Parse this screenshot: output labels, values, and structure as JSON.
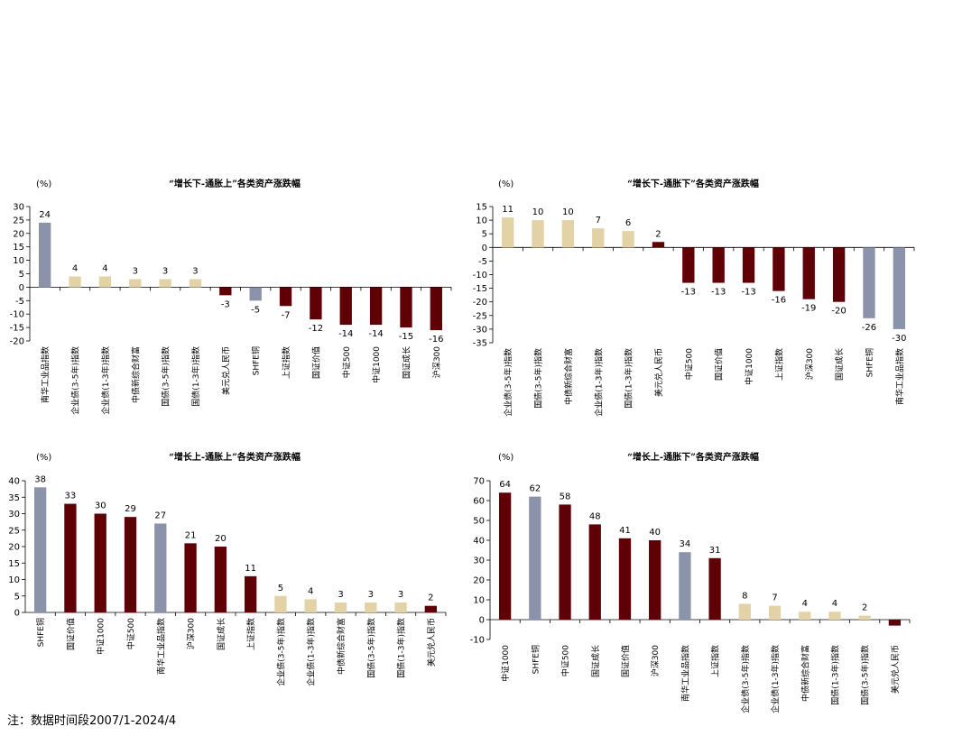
{
  "footnote": "注：数据时间段2007/1-2024/4",
  "colors": {
    "commodity": "#8b93ab",
    "equity": "#5f0006",
    "bond": "#e3d2a5",
    "axis": "#000000"
  },
  "chart_data": [
    {
      "type": "bar",
      "title": "“增长下-通胀上”各类资产涨跌幅",
      "ylabel": "(%)",
      "ylim": [
        -20,
        30
      ],
      "yticks": [
        30,
        25,
        20,
        15,
        10,
        5,
        0,
        -5,
        -10,
        -15,
        -20
      ],
      "categories": [
        "南华工业品指数",
        "企业债(3-5年)指数",
        "企业债(1-3年)指数",
        "中债新综合财富",
        "国债(3-5年)指数",
        "国债(1-3年)指数",
        "美元兑人民币",
        "SHFE铜",
        "上证指数",
        "国证价值",
        "中证500",
        "中证1000",
        "国证成长",
        "沪深300"
      ],
      "values": [
        24,
        4,
        4,
        3,
        3,
        3,
        -3,
        -5,
        -7,
        -12,
        -14,
        -14,
        -15,
        -16
      ],
      "colors": [
        "commodity",
        "bond",
        "bond",
        "bond",
        "bond",
        "bond",
        "equity",
        "commodity",
        "equity",
        "equity",
        "equity",
        "equity",
        "equity",
        "equity"
      ]
    },
    {
      "type": "bar",
      "title": "“增长下-通胀下”各类资产涨跌幅",
      "ylabel": "(%)",
      "ylim": [
        -35,
        15
      ],
      "yticks": [
        15,
        10,
        5,
        0,
        -5,
        -10,
        -15,
        -20,
        -25,
        -30,
        -35
      ],
      "categories": [
        "企业债(3-5年)指数",
        "国债(3-5年)指数",
        "中债新综合财富",
        "企业债(1-3年)指数",
        "国债(1-3年)指数",
        "美元兑人民币",
        "中证500",
        "国证价值",
        "中证1000",
        "上证指数",
        "沪深300",
        "国证成长",
        "SHFE铜",
        "南华工业品指数"
      ],
      "values": [
        11,
        10,
        10,
        7,
        6,
        2,
        -13,
        -13,
        -13,
        -16,
        -19,
        -20,
        -26,
        -30
      ],
      "colors": [
        "bond",
        "bond",
        "bond",
        "bond",
        "bond",
        "equity",
        "equity",
        "equity",
        "equity",
        "equity",
        "equity",
        "equity",
        "commodity",
        "commodity"
      ]
    },
    {
      "type": "bar",
      "title": "“增长上-通胀上”各类资产涨跌幅",
      "ylabel": "(%)",
      "ylim": [
        0,
        40
      ],
      "yticks": [
        40,
        35,
        30,
        25,
        20,
        15,
        10,
        5,
        0
      ],
      "categories": [
        "SHFE铜",
        "国证价值",
        "中证1000",
        "中证500",
        "南华工业品指数",
        "沪深300",
        "国证成长",
        "上证指数",
        "企业债(3-5年)指数",
        "企业债(1-3年)指数",
        "中债新综合财富",
        "国债(3-5年)指数",
        "国债(1-3年)指数",
        "美元兑人民币"
      ],
      "values": [
        38,
        33,
        30,
        29,
        27,
        21,
        20,
        11,
        5,
        4,
        3,
        3,
        3,
        2
      ],
      "colors": [
        "commodity",
        "equity",
        "equity",
        "equity",
        "commodity",
        "equity",
        "equity",
        "equity",
        "bond",
        "bond",
        "bond",
        "bond",
        "bond",
        "equity"
      ]
    },
    {
      "type": "bar",
      "title": "“增长上-通胀下”各类资产涨跌幅",
      "ylabel": "(%)",
      "ylim": [
        -10,
        70
      ],
      "yticks": [
        70,
        60,
        50,
        40,
        30,
        20,
        10,
        0,
        -10
      ],
      "categories": [
        "中证1000",
        "SHFE铜",
        "中证500",
        "国证成长",
        "国证价值",
        "沪深300",
        "南华工业品指数",
        "上证指数",
        "企业债(3-5年)指数",
        "企业债(1-3年)指数",
        "中债新综合财富",
        "国债(1-3年)指数",
        "国债(3-5年)指数",
        "美元兑人民币"
      ],
      "values": [
        64,
        62,
        58,
        48,
        41,
        40,
        34,
        31,
        8,
        7,
        4,
        4,
        2,
        -3
      ],
      "labels": [
        "64",
        "62",
        "58",
        "48",
        "41",
        "40",
        "34",
        "31",
        "8",
        "7",
        "4",
        "4",
        "2",
        ""
      ],
      "colors": [
        "equity",
        "commodity",
        "equity",
        "equity",
        "equity",
        "equity",
        "commodity",
        "equity",
        "bond",
        "bond",
        "bond",
        "bond",
        "bond",
        "equity"
      ]
    }
  ]
}
